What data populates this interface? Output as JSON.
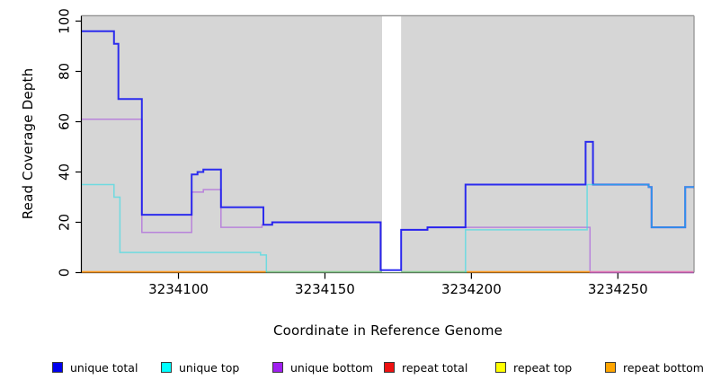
{
  "figure": {
    "background": "#ffffff",
    "panel_background": "#d6d6d6",
    "panel_border_color": "#9a9a9a",
    "axis_color": "#000000",
    "tick_label_color": "#000000"
  },
  "legend": {
    "items": [
      {
        "label": "unique total",
        "fill": "#0000ee"
      },
      {
        "label": "unique top",
        "fill": "#00ffff"
      },
      {
        "label": "unique bottom",
        "fill": "#a020f0"
      },
      {
        "label": "repeat total",
        "fill": "#ee1111"
      },
      {
        "label": "repeat top",
        "fill": "#ffff00"
      },
      {
        "label": "repeat bottom",
        "fill": "#ffa500"
      }
    ]
  },
  "chart_data": {
    "type": "line",
    "subtype": "step-coverage-plot",
    "title": "",
    "xlabel": "Coordinate in Reference Genome",
    "ylabel": "Read Coverage Depth",
    "x_range": [
      3234067,
      3234276
    ],
    "y_range": [
      0,
      100
    ],
    "x_ticks": [
      {
        "value": 3234100,
        "label": "3234100"
      },
      {
        "value": 3234150,
        "label": "3234150"
      },
      {
        "value": 3234200,
        "label": "3234200"
      },
      {
        "value": 3234250,
        "label": "3234250"
      }
    ],
    "y_ticks": [
      {
        "value": 0,
        "label": "0"
      },
      {
        "value": 20,
        "label": "20"
      },
      {
        "value": 40,
        "label": "40"
      },
      {
        "value": 60,
        "label": "60"
      },
      {
        "value": 80,
        "label": "80"
      },
      {
        "value": 100,
        "label": "100"
      }
    ],
    "gap_band": {
      "from": 3234169.5,
      "to": 3234176,
      "color": "#ffffff"
    },
    "series": [
      {
        "name": "unique bottom",
        "color": "#a040e0",
        "width": 1.5,
        "opacity": 0.55,
        "steps": [
          [
            3234067,
            61
          ],
          [
            3234087.5,
            16
          ],
          [
            3234104.5,
            32
          ],
          [
            3234108.5,
            33
          ],
          [
            3234114.5,
            18
          ],
          [
            3234128.5,
            19
          ],
          [
            3234132,
            20
          ],
          [
            3234169,
            1
          ],
          [
            3234176,
            17
          ],
          [
            3234185,
            18
          ],
          [
            3234240.5,
            0
          ],
          [
            3234276,
            0
          ]
        ]
      },
      {
        "name": "unique total",
        "color": "#1515f0",
        "width": 2,
        "opacity": 0.88,
        "steps": [
          [
            3234067,
            96
          ],
          [
            3234078,
            91
          ],
          [
            3234079.5,
            69
          ],
          [
            3234087.5,
            23
          ],
          [
            3234104.5,
            39
          ],
          [
            3234106.5,
            40
          ],
          [
            3234108.5,
            41
          ],
          [
            3234114.5,
            26
          ],
          [
            3234129,
            19
          ],
          [
            3234132,
            20
          ],
          [
            3234169,
            1
          ],
          [
            3234176,
            17
          ],
          [
            3234185,
            18
          ],
          [
            3234198,
            35
          ],
          [
            3234239,
            52
          ],
          [
            3234241.5,
            35
          ],
          [
            3234260.5,
            34
          ],
          [
            3234261.5,
            18
          ],
          [
            3234273,
            34
          ],
          [
            3234276,
            34
          ]
        ]
      },
      {
        "name": "unique top",
        "color": "#30dde6",
        "width": 1.5,
        "opacity": 0.62,
        "segments": [
          [
            [
              3234067,
              35
            ],
            [
              3234078,
              30
            ],
            [
              3234080,
              8
            ],
            [
              3234128,
              7
            ],
            [
              3234130,
              0
            ]
          ],
          [
            [
              3234198,
              0
            ],
            [
              3234198,
              17
            ],
            [
              3234239.5,
              35
            ],
            [
              3234260.5,
              34
            ],
            [
              3234261.5,
              18
            ],
            [
              3234273,
              34
            ],
            [
              3234276,
              34
            ]
          ]
        ]
      },
      {
        "name": "repeat total",
        "color": "#ee1111",
        "width": 1.5,
        "opacity": 1,
        "steps": []
      },
      {
        "name": "repeat top",
        "color": "#ffff00",
        "width": 1.5,
        "opacity": 1,
        "steps": []
      },
      {
        "name": "repeat bottom",
        "color": "#ff9d26",
        "width": 1.6,
        "opacity": 1,
        "steps": []
      }
    ],
    "baseline_segments": [
      {
        "name": "repeat-bottom-baseline-left",
        "from": 3234067,
        "to": 3234130,
        "color": "#ff9d26"
      },
      {
        "name": "blended-zero-baseline-mid",
        "from": 3234130,
        "to": 3234198.5,
        "color": "#8bcb90"
      },
      {
        "name": "repeat-bottom-baseline-right",
        "from": 3234198.5,
        "to": 3234240.5,
        "color": "#ff9d26"
      },
      {
        "name": "blended-zero-baseline-far-right",
        "from": 3234240.5,
        "to": 3234276,
        "color": "#e27ab8"
      }
    ]
  }
}
